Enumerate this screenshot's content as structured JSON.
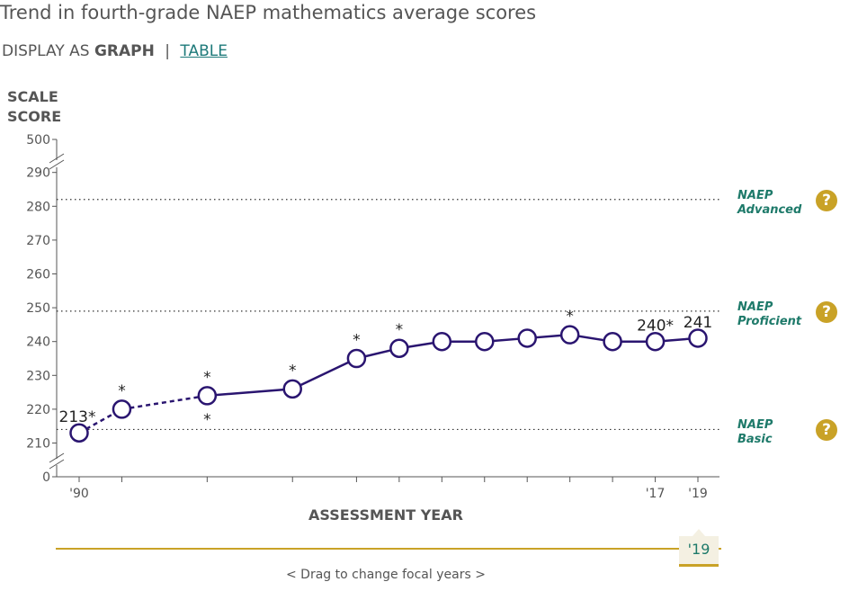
{
  "page": {
    "title": "Trend in fourth-grade NAEP mathematics average scores",
    "display_as": "DISPLAY AS",
    "graph_label": "GRAPH",
    "separator": "|",
    "table_link": "TABLE",
    "drag_hint": "<  Drag to change focal years  >",
    "focal_year_label": "'19"
  },
  "levels": [
    {
      "id": "advanced",
      "line1": "NAEP",
      "line2": "Advanced",
      "score": 282,
      "help": "?"
    },
    {
      "id": "proficient",
      "line1": "NAEP",
      "line2": "Proficient",
      "score": 249,
      "help": "?"
    },
    {
      "id": "basic",
      "line1": "NAEP",
      "line2": "Basic",
      "score": 214,
      "help": "?"
    }
  ],
  "colors": {
    "line": "#2a1570",
    "accent": "#c9a227",
    "teal": "#1e7a6a",
    "grid": "#333333"
  },
  "chart_data": {
    "type": "line",
    "ylabel_line1": "SCALE",
    "ylabel_line2": "SCORE",
    "xlabel": "ASSESSMENT YEAR",
    "ylim": [
      210,
      290
    ],
    "y_ticks": [
      0,
      210,
      220,
      230,
      240,
      250,
      260,
      270,
      280,
      290,
      500
    ],
    "axis_break": true,
    "x_ticks": [
      1990,
      1992,
      1996,
      2000,
      2003,
      2005,
      2007,
      2009,
      2011,
      2013,
      2015,
      2017,
      2019
    ],
    "x_tick_labels": [
      {
        "year": 1990,
        "label": "'90"
      },
      {
        "year": 2017,
        "label": "'17"
      },
      {
        "year": 2019,
        "label": "'19"
      }
    ],
    "series": [
      {
        "points": [
          {
            "year": 1990,
            "score": 213,
            "sig": true,
            "label": "213*"
          },
          {
            "year": 1992,
            "score": 220,
            "sig": true
          },
          {
            "year": 1996,
            "score": 224,
            "sig": true
          },
          {
            "year": 1996,
            "score": 224,
            "sig": true,
            "star_below": true
          },
          {
            "year": 2000,
            "score": 226,
            "sig": true
          },
          {
            "year": 2003,
            "score": 235,
            "sig": true
          },
          {
            "year": 2005,
            "score": 238,
            "sig": true
          },
          {
            "year": 2007,
            "score": 240,
            "sig": false
          },
          {
            "year": 2009,
            "score": 240,
            "sig": false
          },
          {
            "year": 2011,
            "score": 241,
            "sig": false
          },
          {
            "year": 2013,
            "score": 242,
            "sig": true
          },
          {
            "year": 2015,
            "score": 240,
            "sig": false
          },
          {
            "year": 2017,
            "score": 240,
            "sig": true,
            "label": "240*"
          },
          {
            "year": 2019,
            "score": 241,
            "sig": false,
            "label": "241"
          }
        ],
        "dashed_until_year": 1996
      }
    ],
    "grid": false,
    "legend": "none"
  }
}
